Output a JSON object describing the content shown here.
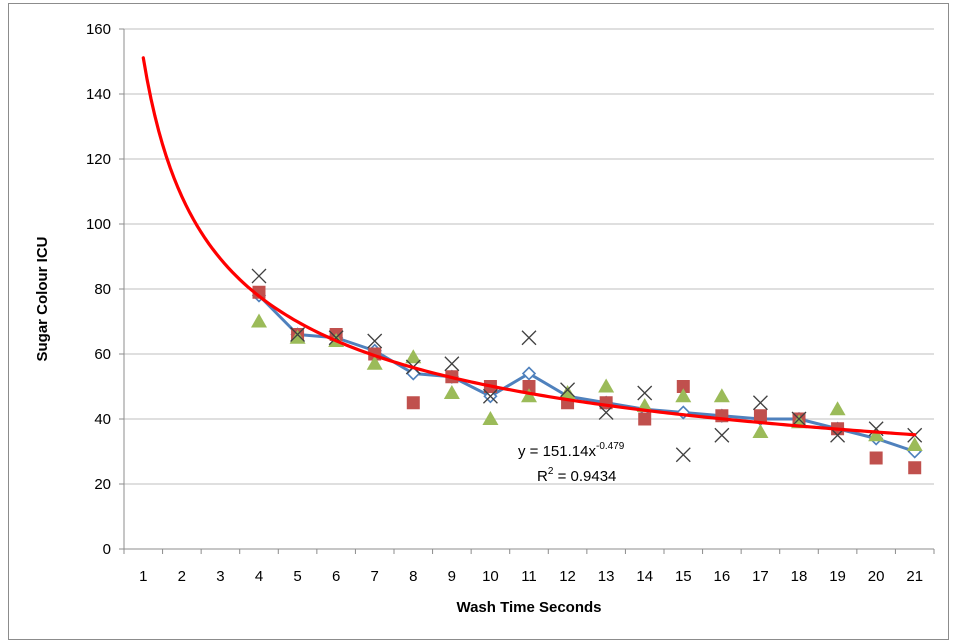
{
  "chart_data": {
    "type": "scatter",
    "title": "",
    "xlabel": "Wash Time Seconds",
    "ylabel": "Sugar Colour ICU",
    "xlim": [
      0.5,
      21.5
    ],
    "ylim": [
      0,
      160
    ],
    "ytick_step": 20,
    "x_categories": [
      "1",
      "2",
      "3",
      "4",
      "5",
      "6",
      "7",
      "8",
      "9",
      "10",
      "11",
      "12",
      "13",
      "14",
      "15",
      "16",
      "17",
      "18",
      "19",
      "20",
      "21"
    ],
    "grid": true,
    "legend": "none",
    "series": [
      {
        "marker": "diamond-line",
        "color": "#4f81bd",
        "x": [
          4,
          5,
          6,
          7,
          8,
          9,
          10,
          11,
          12,
          13,
          14,
          15,
          16,
          17,
          18,
          19,
          20,
          21
        ],
        "values": [
          78,
          66,
          65,
          61,
          54,
          53,
          47,
          54,
          47,
          45,
          43,
          42,
          41,
          40,
          40,
          37,
          34,
          30
        ]
      },
      {
        "marker": "square",
        "color": "#c0504d",
        "x": [
          4,
          5,
          6,
          7,
          8,
          9,
          10,
          11,
          12,
          13,
          14,
          15,
          16,
          17,
          18,
          19,
          20,
          21
        ],
        "values": [
          79,
          66,
          66,
          60,
          45,
          53,
          50,
          50,
          45,
          45,
          40,
          50,
          41,
          41,
          40,
          37,
          28,
          25
        ]
      },
      {
        "marker": "triangle",
        "color": "#9bbb59",
        "x": [
          4,
          5,
          6,
          7,
          8,
          9,
          10,
          11,
          12,
          13,
          14,
          15,
          16,
          17,
          18,
          19,
          20,
          21
        ],
        "values": [
          70,
          65,
          64,
          57,
          59,
          48,
          40,
          47,
          48,
          50,
          44,
          47,
          47,
          36,
          39,
          43,
          35,
          32
        ]
      },
      {
        "marker": "x",
        "color": "#404040",
        "x": [
          4,
          5,
          6,
          7,
          8,
          9,
          10,
          11,
          12,
          13,
          14,
          15,
          16,
          17,
          18,
          19,
          20,
          21
        ],
        "values": [
          84,
          66,
          65,
          64,
          56,
          57,
          47,
          65,
          49,
          42,
          48,
          29,
          35,
          45,
          40,
          35,
          37,
          35
        ]
      }
    ],
    "trendline": {
      "type": "power",
      "a": 151.14,
      "b": -0.479,
      "color": "#ff0000",
      "x_start": 1,
      "x_end": 21
    },
    "annotation": {
      "equation_prefix": "y = 151.14x",
      "equation_exponent": "-0.479",
      "r_squared_prefix": "R",
      "r_squared_exp": "2",
      "r_squared_value": " = 0.9434"
    }
  }
}
